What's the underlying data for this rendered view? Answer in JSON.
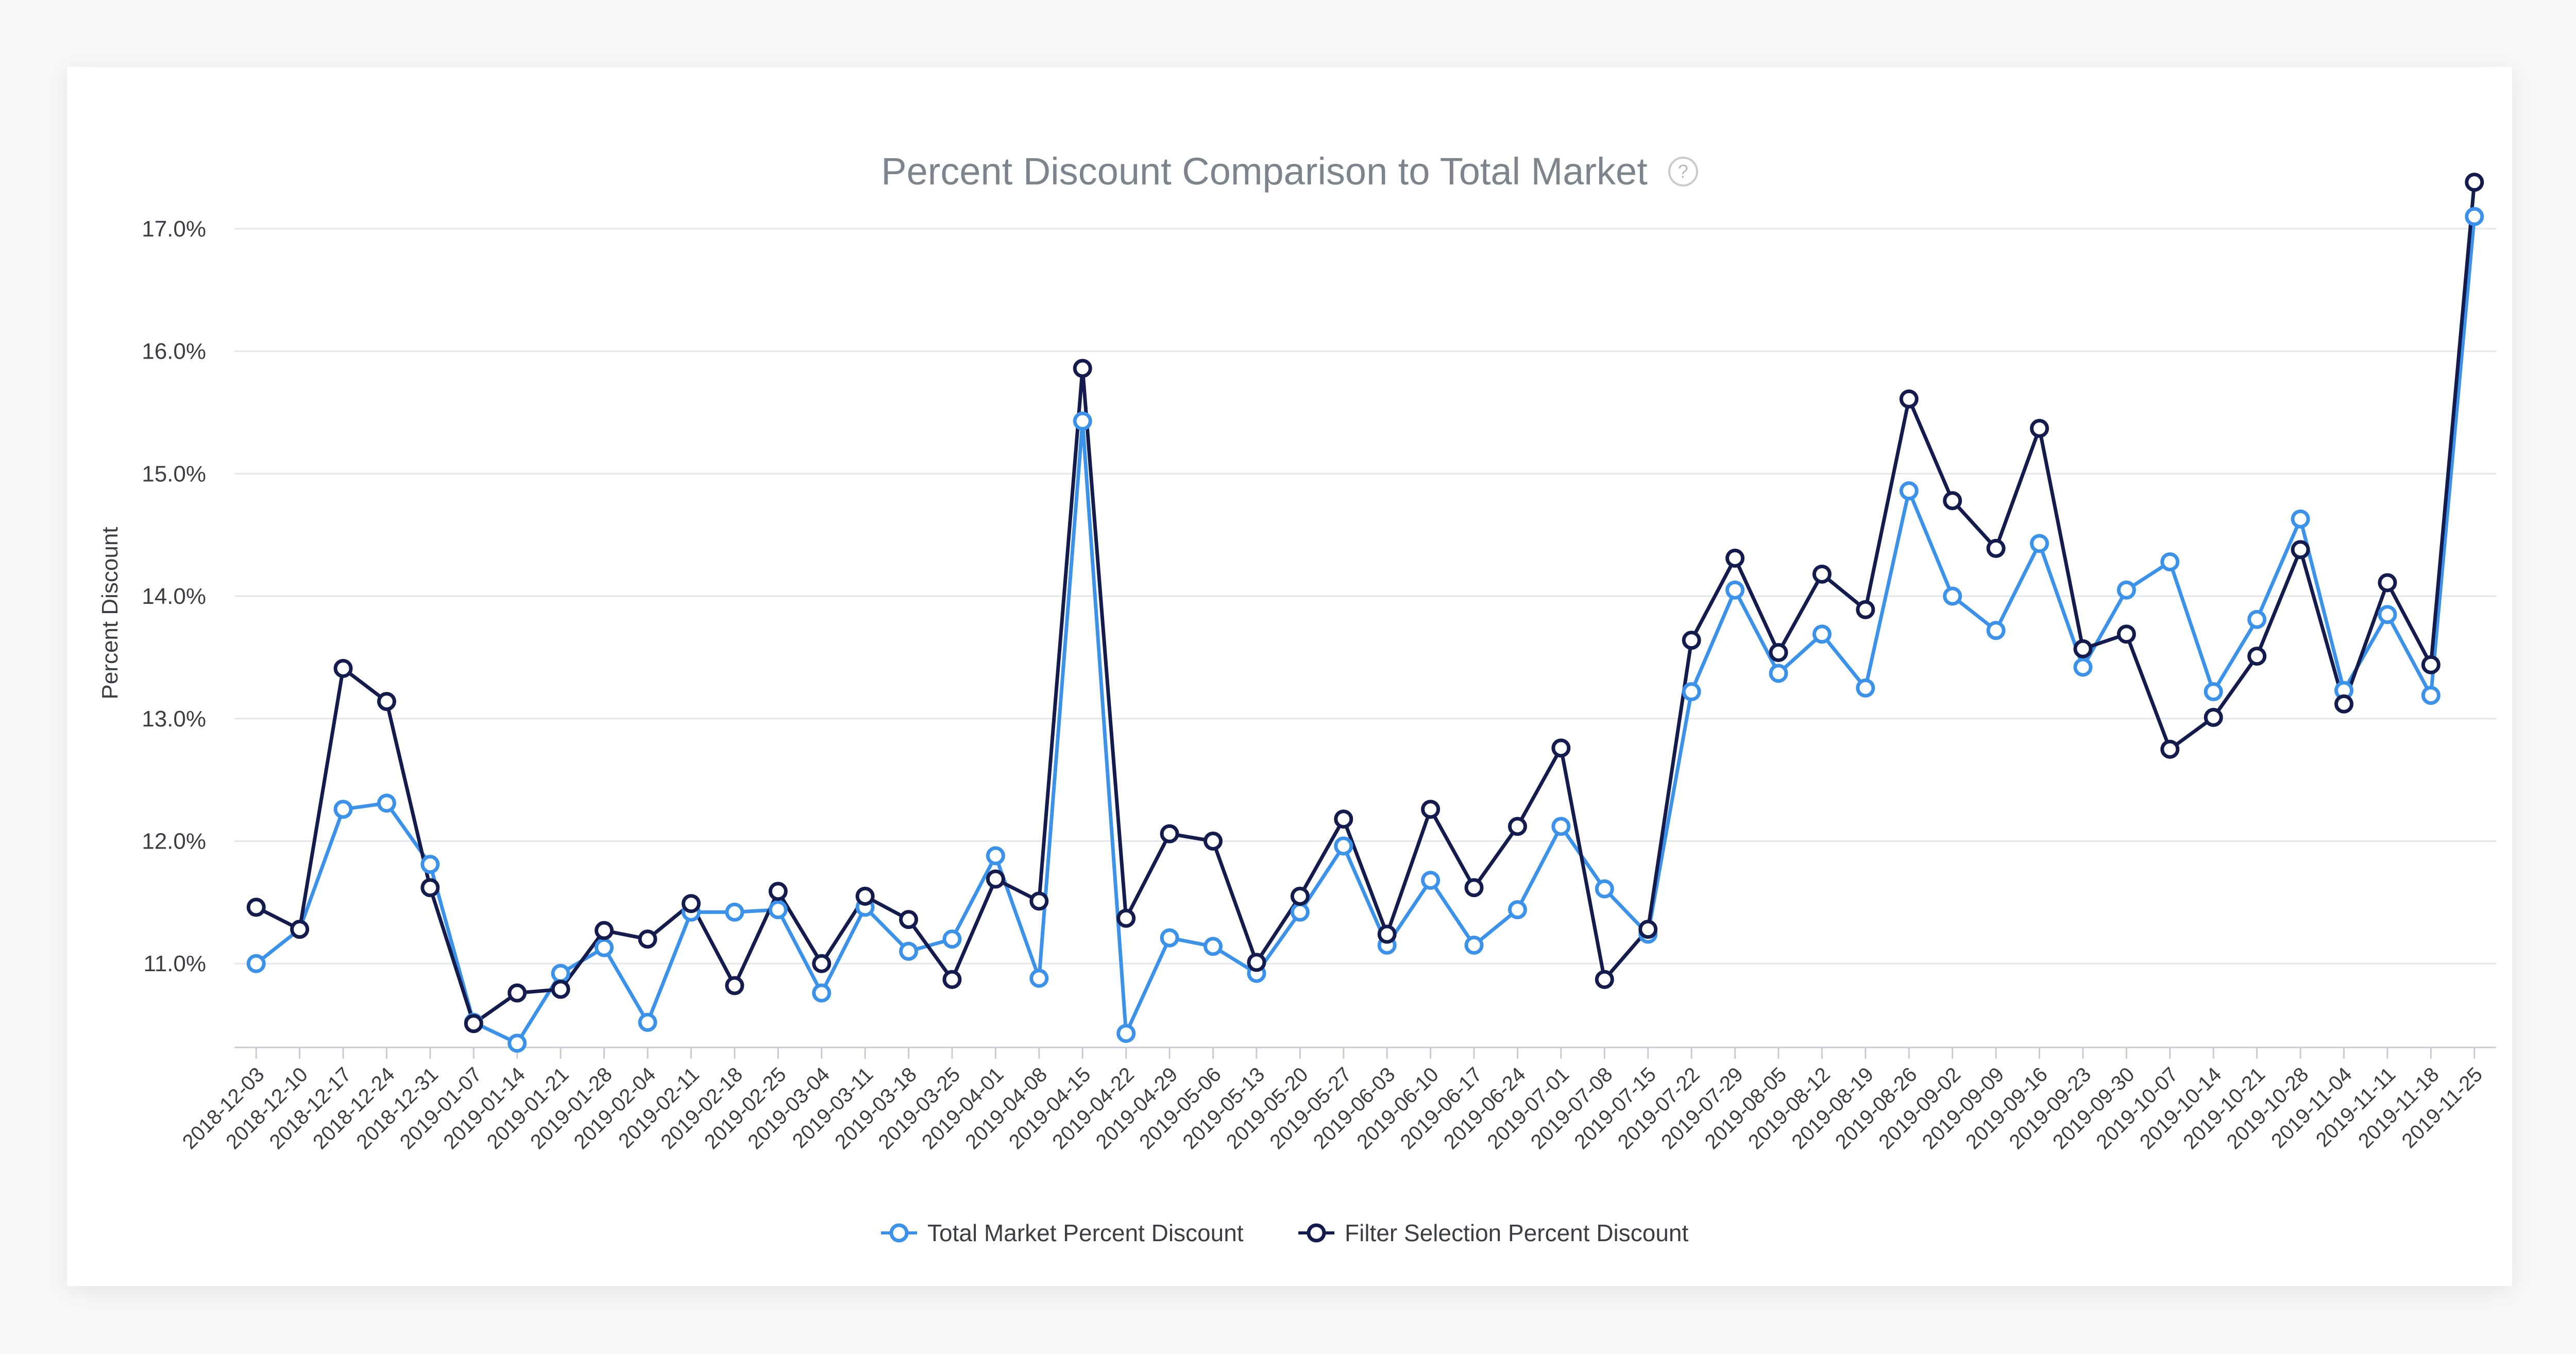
{
  "title": "Percent Discount Comparison to Total Market",
  "help_icon": "help-circle-icon",
  "chart_data": {
    "type": "line",
    "title": "Percent Discount Comparison to Total Market",
    "ylabel": "Percent Discount",
    "xlabel": "",
    "ylim": [
      10.3,
      17.5
    ],
    "yticks": [
      11,
      12,
      13,
      14,
      15,
      16,
      17
    ],
    "ytick_labels": [
      "11.0%",
      "12.0%",
      "13.0%",
      "14.0%",
      "15.0%",
      "16.0%",
      "17.0%"
    ],
    "grid": true,
    "legend_position": "bottom-center",
    "categories": [
      "2018-12-03",
      "2018-12-10",
      "2018-12-17",
      "2018-12-24",
      "2018-12-31",
      "2019-01-07",
      "2019-01-14",
      "2019-01-21",
      "2019-01-28",
      "2019-02-04",
      "2019-02-11",
      "2019-02-18",
      "2019-02-25",
      "2019-03-04",
      "2019-03-11",
      "2019-03-18",
      "2019-03-25",
      "2019-04-01",
      "2019-04-08",
      "2019-04-15",
      "2019-04-22",
      "2019-04-29",
      "2019-05-06",
      "2019-05-13",
      "2019-05-20",
      "2019-05-27",
      "2019-06-03",
      "2019-06-10",
      "2019-06-17",
      "2019-06-24",
      "2019-07-01",
      "2019-07-08",
      "2019-07-15",
      "2019-07-22",
      "2019-07-29",
      "2019-08-05",
      "2019-08-12",
      "2019-08-19",
      "2019-08-26",
      "2019-09-02",
      "2019-09-09",
      "2019-09-16",
      "2019-09-23",
      "2019-09-30",
      "2019-10-07",
      "2019-10-14",
      "2019-10-21",
      "2019-10-28",
      "2019-11-04",
      "2019-11-11",
      "2019-11-18",
      "2019-11-25"
    ],
    "series": [
      {
        "name": "Total Market Percent Discount",
        "color": "#3b92ea",
        "values": [
          11.0,
          11.28,
          12.26,
          12.31,
          11.81,
          10.52,
          10.35,
          10.92,
          11.13,
          10.52,
          11.42,
          11.42,
          11.44,
          10.76,
          11.46,
          11.1,
          11.2,
          11.88,
          10.88,
          15.43,
          10.43,
          11.21,
          11.14,
          10.92,
          11.42,
          11.96,
          11.15,
          11.68,
          11.15,
          11.44,
          12.12,
          11.61,
          11.24,
          13.22,
          14.05,
          13.37,
          13.69,
          13.25,
          14.86,
          14.0,
          13.72,
          14.43,
          13.42,
          14.05,
          14.28,
          13.22,
          13.81,
          14.63,
          13.23,
          13.85,
          13.19,
          17.1
        ]
      },
      {
        "name": "Filter Selection Percent Discount",
        "color": "#141b4d",
        "values": [
          11.46,
          11.28,
          13.41,
          13.14,
          11.62,
          10.51,
          10.76,
          10.79,
          11.27,
          11.2,
          11.49,
          10.82,
          11.59,
          11.0,
          11.55,
          11.36,
          10.87,
          11.69,
          11.51,
          15.86,
          11.37,
          12.06,
          12.0,
          11.01,
          11.55,
          12.18,
          11.24,
          12.26,
          11.62,
          12.12,
          12.76,
          10.87,
          11.28,
          13.64,
          14.31,
          13.54,
          14.18,
          13.89,
          15.61,
          14.78,
          14.39,
          15.37,
          13.57,
          13.69,
          12.75,
          13.01,
          13.51,
          14.38,
          13.12,
          14.11,
          13.44,
          17.38
        ]
      }
    ]
  }
}
